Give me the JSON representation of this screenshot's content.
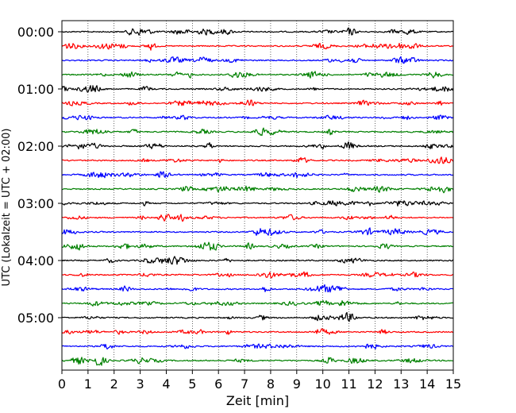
{
  "chart_data": {
    "type": "line",
    "title": "",
    "xlabel": "Zeit  [min]",
    "ylabel": "UTC (Lokalzeit = UTC + 02:00)",
    "xlim": [
      0,
      15
    ],
    "x_ticks": [
      0,
      1,
      2,
      3,
      4,
      5,
      6,
      7,
      8,
      9,
      10,
      11,
      12,
      13,
      14,
      15
    ],
    "x_tick_labels": [
      "0",
      "1",
      "2",
      "3",
      "4",
      "5",
      "6",
      "7",
      "8",
      "9",
      "10",
      "11",
      "12",
      "13",
      "14",
      "15"
    ],
    "row_minutes": 15,
    "row_count": 24,
    "y_tick_labels": [
      {
        "row": 0,
        "label": "00:00"
      },
      {
        "row": 4,
        "label": "01:00"
      },
      {
        "row": 8,
        "label": "02:00"
      },
      {
        "row": 12,
        "label": "03:00"
      },
      {
        "row": 16,
        "label": "04:00"
      },
      {
        "row": 20,
        "label": "05:00"
      }
    ],
    "trace_colors": [
      "#000000",
      "#ff0000",
      "#0000ff",
      "#008000"
    ],
    "vertical_grid": "dotted",
    "legend": "none"
  }
}
